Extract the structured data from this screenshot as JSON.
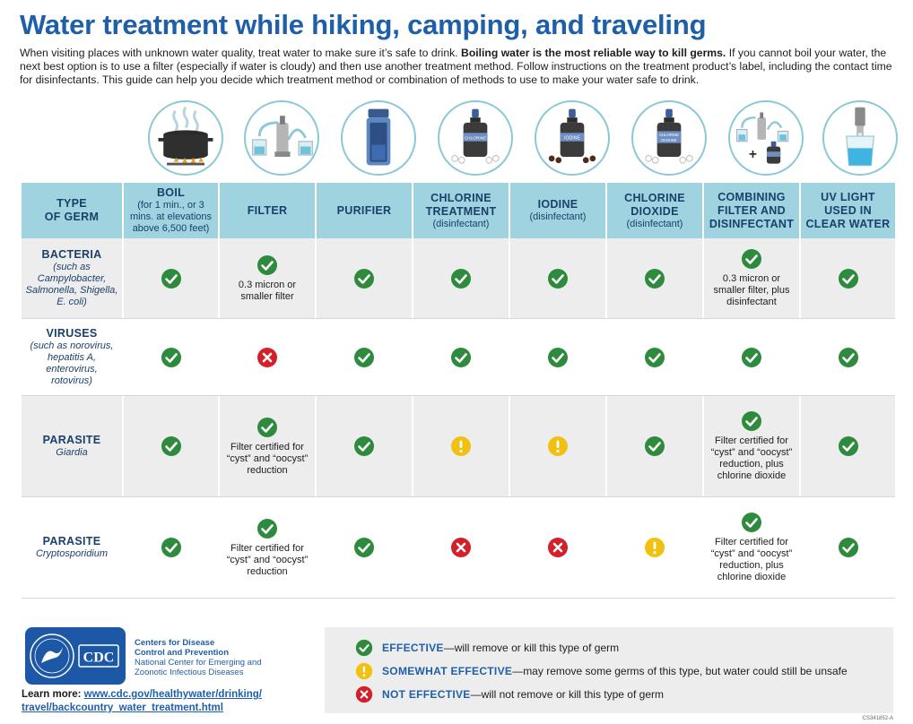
{
  "title": "Water treatment while hiking, camping, and traveling",
  "intro": {
    "part1": "When visiting places with unknown water quality, treat water to make sure it’s safe to drink.  ",
    "bold": "Boiling water is the most reliable way to kill germs.",
    "part2": " If you cannot boil your water, the next best option is to use a filter (especially if water is cloudy) and then use another treatment method. Follow instructions on the treatment product’s label, including the contact time for disinfectants. This guide can help you decide which treatment method or combination of methods to use to make your water safe to drink."
  },
  "icon_labels": {
    "chlorine": "CHLORINE",
    "iodine": "IODINE",
    "chlorine_dioxide_1": "CHLORINE",
    "chlorine_dioxide_2": "DIOXIDE"
  },
  "table": {
    "type_header": [
      "TYPE",
      "OF GERM"
    ],
    "methods": [
      {
        "title": "BOIL",
        "sub": "(for 1 min., or 3 mins. at elevations above 6,500 feet)"
      },
      {
        "title": "FILTER",
        "sub": ""
      },
      {
        "title": "PURIFIER",
        "sub": ""
      },
      {
        "title": "CHLORINE TREATMENT",
        "sub": "(disinfectant)"
      },
      {
        "title": "IODINE",
        "sub": "(disinfectant)"
      },
      {
        "title": "CHLORINE DIOXIDE",
        "sub": "(disinfectant)"
      },
      {
        "title": "COMBINING FILTER AND DISINFECTANT",
        "sub": ""
      },
      {
        "title": "UV LIGHT USED IN CLEAR WATER",
        "sub": ""
      }
    ],
    "rows": [
      {
        "name": "BACTERIA",
        "example": "(such as Campylobacter, Salmonella, Shigella, E. coli)",
        "cells": [
          {
            "status": "effective",
            "note": ""
          },
          {
            "status": "effective",
            "note": "0.3 micron or smaller filter"
          },
          {
            "status": "effective",
            "note": ""
          },
          {
            "status": "effective",
            "note": ""
          },
          {
            "status": "effective",
            "note": ""
          },
          {
            "status": "effective",
            "note": ""
          },
          {
            "status": "effective",
            "note": "0.3 micron or smaller filter, plus disinfectant"
          },
          {
            "status": "effective",
            "note": ""
          }
        ]
      },
      {
        "name": "VIRUSES",
        "example": "(such as norovirus, hepatitis A, enterovirus, rotovirus)",
        "cells": [
          {
            "status": "effective",
            "note": ""
          },
          {
            "status": "not_effective",
            "note": ""
          },
          {
            "status": "effective",
            "note": ""
          },
          {
            "status": "effective",
            "note": ""
          },
          {
            "status": "effective",
            "note": ""
          },
          {
            "status": "effective",
            "note": ""
          },
          {
            "status": "effective",
            "note": ""
          },
          {
            "status": "effective",
            "note": ""
          }
        ]
      },
      {
        "name": "PARASITE",
        "example": "Giardia",
        "cells": [
          {
            "status": "effective",
            "note": ""
          },
          {
            "status": "effective",
            "note": "Filter certified for “cyst” and “oocyst” reduction"
          },
          {
            "status": "effective",
            "note": ""
          },
          {
            "status": "somewhat_effective",
            "note": ""
          },
          {
            "status": "somewhat_effective",
            "note": ""
          },
          {
            "status": "effective",
            "note": ""
          },
          {
            "status": "effective",
            "note": "Filter certified for “cyst” and “oocyst” reduction, plus chlorine dioxide"
          },
          {
            "status": "effective",
            "note": ""
          }
        ]
      },
      {
        "name": "PARASITE",
        "example": "Cryptosporidium",
        "cells": [
          {
            "status": "effective",
            "note": ""
          },
          {
            "status": "effective",
            "note": "Filter certified for “cyst” and “oocyst” reduction"
          },
          {
            "status": "effective",
            "note": ""
          },
          {
            "status": "not_effective",
            "note": ""
          },
          {
            "status": "not_effective",
            "note": ""
          },
          {
            "status": "somewhat_effective",
            "note": ""
          },
          {
            "status": "effective",
            "note": "Filter certified for “cyst” and “oocyst” reduction, plus chlorine dioxide"
          },
          {
            "status": "effective",
            "note": ""
          }
        ]
      }
    ]
  },
  "footer": {
    "logo_text": "CDC",
    "org_line1": "Centers for Disease",
    "org_line2": "Control and Prevention",
    "org_line3": "National Center for Emerging and",
    "org_line4": "Zoonotic Infectious Diseases",
    "learn_label": "Learn more: ",
    "url_line1": "www.cdc.gov/healthywater/drinking/",
    "url_line2": "travel/backcountry_water_treatment.html",
    "code": "CS341852-A"
  },
  "legend": [
    {
      "status": "effective",
      "term": "EFFECTIVE",
      "desc": "—will remove or kill this type of germ"
    },
    {
      "status": "somewhat_effective",
      "term": "SOMEWHAT EFFECTIVE",
      "desc": "—may remove some germs of this type, but water could still be unsafe"
    },
    {
      "status": "not_effective",
      "term": "NOT EFFECTIVE",
      "desc": "—will not remove or kill this type of germ"
    }
  ],
  "colors": {
    "title_blue": "#1f5fa8",
    "header_teal": "#9fd3df",
    "effective_green": "#2e8b3e",
    "somewhat_yellow": "#f2c10f",
    "not_effective_red": "#d3202b"
  },
  "icons": [
    "boiling-pot-icon",
    "filter-icon",
    "purifier-bottle-icon",
    "chlorine-bottle-icon",
    "iodine-bottle-icon",
    "chlorine-dioxide-bottle-icon",
    "filter-plus-disinfectant-icon",
    "uv-light-icon"
  ]
}
